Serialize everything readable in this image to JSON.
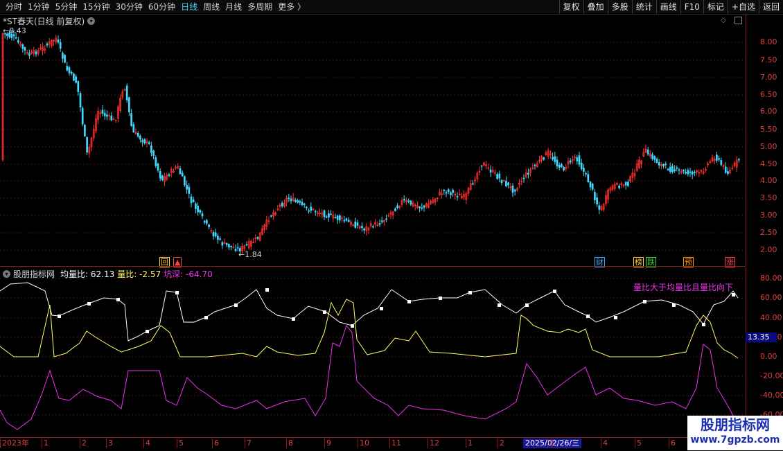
{
  "toolbar": {
    "periods": [
      "分时",
      "1分钟",
      "5分钟",
      "15分钟",
      "30分钟",
      "60分钟",
      "日线",
      "周线",
      "月线",
      "多周期",
      "更多"
    ],
    "active_period": "日线",
    "buttons": [
      "复权",
      "叠加",
      "多股",
      "统计",
      "画线",
      "F10",
      "标记",
      "+自选",
      "返回"
    ]
  },
  "main_chart": {
    "title": "*ST春天(日线 前复权)",
    "high_label": "8.43",
    "low_label": "1.84",
    "markers": [
      {
        "text": "回",
        "color": "#ffcc33"
      },
      {
        "text": "▲",
        "color": "#ff4040"
      },
      {
        "text": "财",
        "color": "#4aa8ff"
      },
      {
        "text": "榜",
        "color": "#ffcc33"
      },
      {
        "text": "跌",
        "color": "#33dd33"
      },
      {
        "text": "预",
        "color": "#ff9900"
      },
      {
        "text": "涨",
        "color": "#ff4040"
      }
    ]
  },
  "price_axis": [
    "8.00",
    "7.50",
    "7.00",
    "6.50",
    "6.00",
    "5.50",
    "5.00",
    "4.50",
    "4.00",
    "3.50",
    "3.00",
    "2.50",
    "2.00"
  ],
  "indicator": {
    "name": "股朋指标网",
    "series_labels": [
      {
        "label": "均量比:",
        "value": "62.13",
        "color": "#ffffff"
      },
      {
        "label": "量比:",
        "value": "-2.57",
        "color": "#ffff66"
      },
      {
        "label": "坑深:",
        "value": "-64.70",
        "color": "#ee33ee"
      }
    ],
    "annotation": "量比大于均量比且量比向下",
    "current_badge": "13.35"
  },
  "sub_axis": [
    "80.00",
    "60.00",
    "40.00",
    "20.00",
    "0.00",
    "-20.00",
    "-40.00",
    "-60.00"
  ],
  "date_axis": {
    "ticks": [
      "2023年",
      "1",
      "2",
      "3",
      "4",
      "5",
      "6",
      "7",
      "8",
      "9",
      "10",
      "11",
      "12",
      "1",
      "2",
      "3",
      "4",
      "5",
      "6",
      "7"
    ],
    "cursor_date": "2025/02/26/三"
  },
  "watermark": {
    "line1": "股朋指标网",
    "line2": "www.7gpzb.com"
  },
  "colors": {
    "up": "#ff3030",
    "down": "#3fd9ff",
    "avg_ratio": "#ffffff",
    "vol_ratio": "#ffff66",
    "pit_depth": "#ee33ee",
    "axis": "#e04040"
  }
}
